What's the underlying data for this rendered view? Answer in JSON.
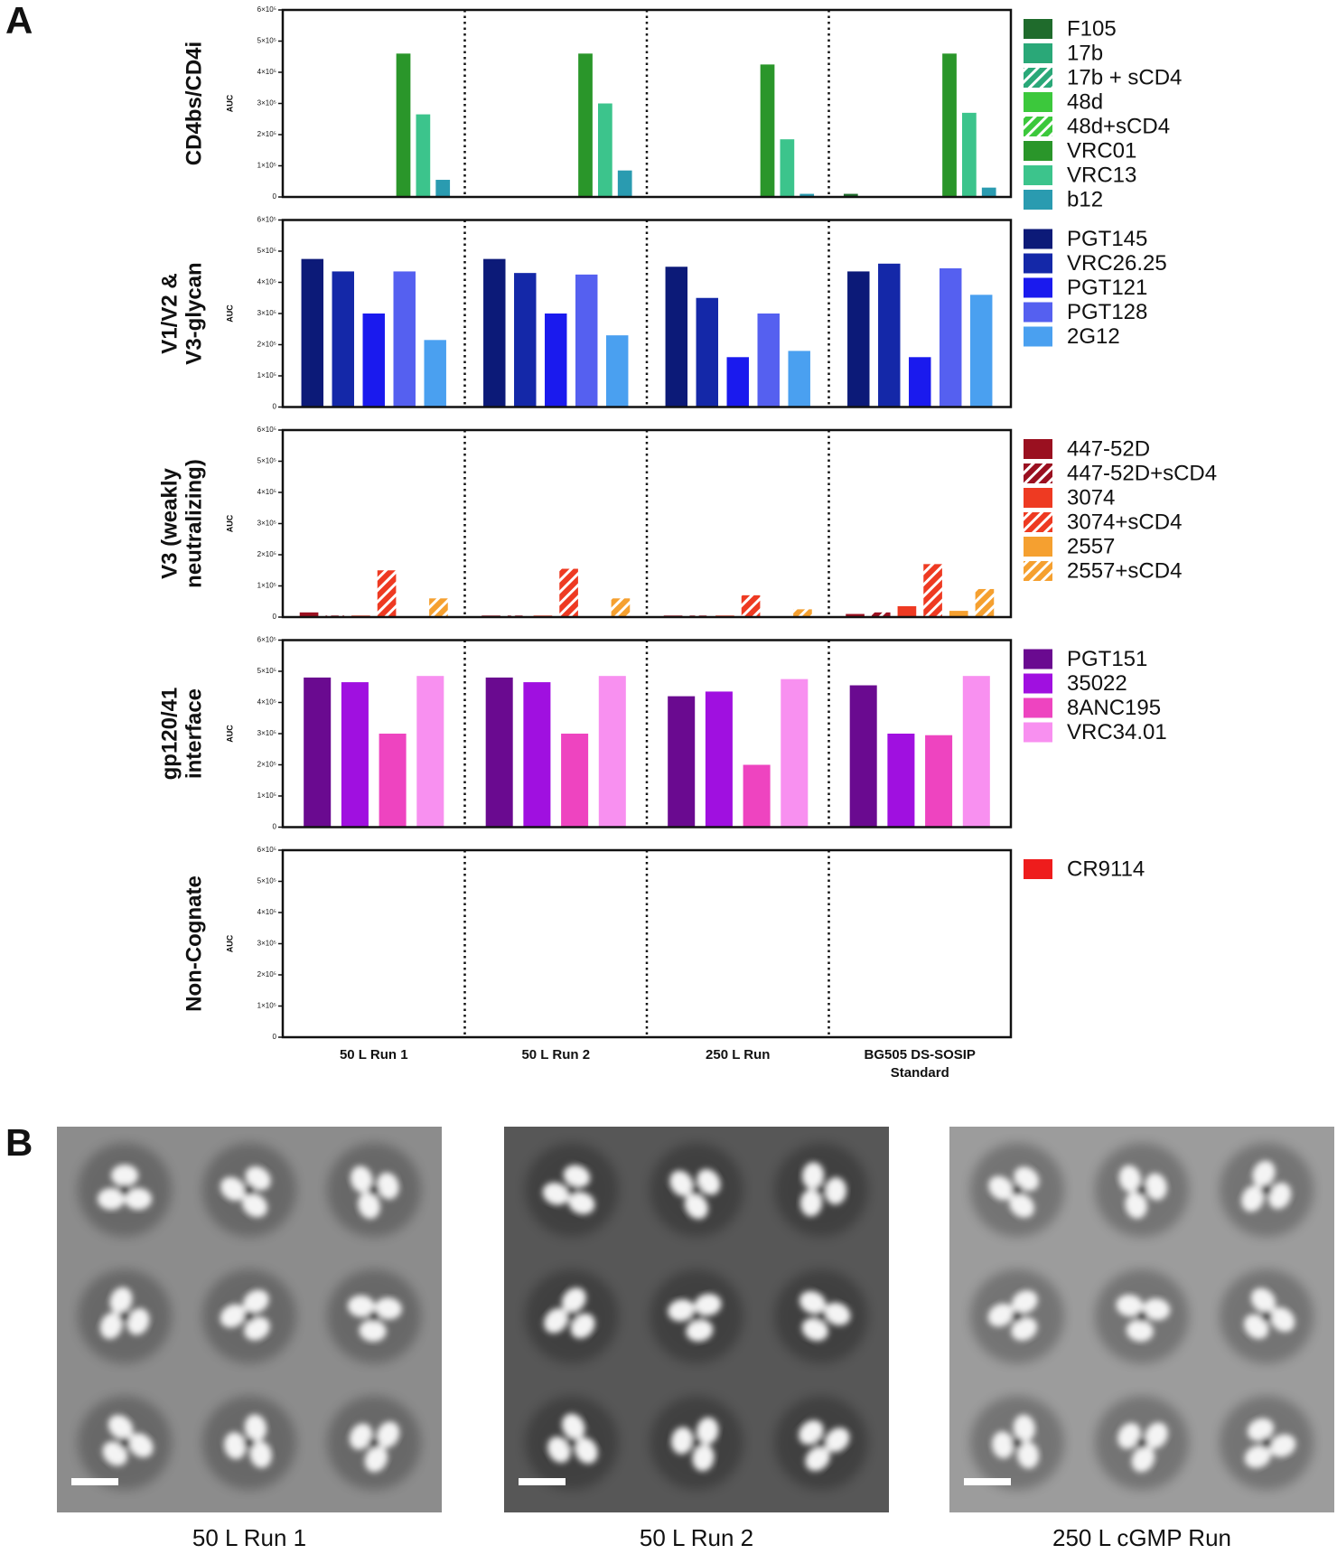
{
  "panel_labels": [
    "A",
    "B"
  ],
  "chart_data": [
    {
      "type": "bar",
      "title": [
        "CD4bs/CD4i"
      ],
      "y_label": "AUC",
      "ylim": [
        0,
        600000
      ],
      "yticks": [
        0,
        {
          "value": 100000,
          "label": "1×10⁵"
        },
        {
          "value": 200000,
          "label": "2×10⁵"
        },
        {
          "value": 300000,
          "label": "3×10⁵"
        },
        {
          "value": 400000,
          "label": "4×10⁵"
        },
        {
          "value": 500000,
          "label": "5×10⁵"
        },
        {
          "value": 600000,
          "label": "6×10⁵"
        }
      ],
      "series": [
        {
          "name": "F105",
          "color": "#1f6b2c",
          "hatched": false,
          "values": [
            0,
            0,
            0,
            10000
          ]
        },
        {
          "name": "17b",
          "color": "#2aa878",
          "hatched": false,
          "values": [
            0,
            0,
            0,
            0
          ]
        },
        {
          "name": "17b + sCD4",
          "color": "#2aa878",
          "hatched": true,
          "values": [
            0,
            0,
            0,
            0
          ]
        },
        {
          "name": "48d",
          "color": "#3cc83c",
          "hatched": false,
          "values": [
            0,
            0,
            0,
            0
          ]
        },
        {
          "name": "48d+sCD4",
          "color": "#3cc83c",
          "hatched": true,
          "values": [
            0,
            0,
            0,
            0
          ]
        },
        {
          "name": "VRC01",
          "color": "#2a962a",
          "hatched": false,
          "values": [
            460000,
            460000,
            425000,
            460000
          ]
        },
        {
          "name": "VRC13",
          "color": "#3cc48c",
          "hatched": false,
          "values": [
            265000,
            300000,
            185000,
            270000
          ]
        },
        {
          "name": "b12",
          "color": "#2a9bb0",
          "hatched": false,
          "values": [
            55000,
            85000,
            10000,
            30000
          ]
        }
      ]
    },
    {
      "type": "bar",
      "title": [
        "V1/V2 &",
        "V3-glycan"
      ],
      "y_label": "AUC",
      "ylim": [
        0,
        600000
      ],
      "yticks": [
        0,
        {
          "value": 100000,
          "label": "1×10⁵"
        },
        {
          "value": 200000,
          "label": "2×10⁵"
        },
        {
          "value": 300000,
          "label": "3×10⁵"
        },
        {
          "value": 400000,
          "label": "4×10⁵"
        },
        {
          "value": 500000,
          "label": "5×10⁵"
        },
        {
          "value": 600000,
          "label": "6×10⁵"
        }
      ],
      "series": [
        {
          "name": "PGT145",
          "color": "#0c1a78",
          "hatched": false,
          "values": [
            475000,
            475000,
            450000,
            435000
          ]
        },
        {
          "name": "VRC26.25",
          "color": "#1428a8",
          "hatched": false,
          "values": [
            435000,
            430000,
            350000,
            460000
          ]
        },
        {
          "name": "PGT121",
          "color": "#1a1aee",
          "hatched": false,
          "values": [
            300000,
            300000,
            160000,
            160000
          ]
        },
        {
          "name": "PGT128",
          "color": "#5560f0",
          "hatched": false,
          "values": [
            435000,
            425000,
            300000,
            445000
          ]
        },
        {
          "name": "2G12",
          "color": "#4aa0f0",
          "hatched": false,
          "values": [
            215000,
            230000,
            180000,
            360000
          ]
        }
      ]
    },
    {
      "type": "bar",
      "title": [
        "V3 (weakly",
        "neutralizing)"
      ],
      "y_label": "AUC",
      "ylim": [
        0,
        600000
      ],
      "yticks": [
        0,
        {
          "value": 100000,
          "label": "1×10⁵"
        },
        {
          "value": 200000,
          "label": "2×10⁵"
        },
        {
          "value": 300000,
          "label": "3×10⁵"
        },
        {
          "value": 400000,
          "label": "4×10⁵"
        },
        {
          "value": 500000,
          "label": "5×10⁵"
        },
        {
          "value": 600000,
          "label": "6×10⁵"
        }
      ],
      "series": [
        {
          "name": "447-52D",
          "color": "#9a1020",
          "hatched": false,
          "values": [
            15000,
            5000,
            5000,
            10000
          ]
        },
        {
          "name": "447-52D+sCD4",
          "color": "#9a1020",
          "hatched": true,
          "values": [
            5000,
            5000,
            5000,
            15000
          ]
        },
        {
          "name": "3074",
          "color": "#ee3a22",
          "hatched": false,
          "values": [
            5000,
            5000,
            5000,
            35000
          ]
        },
        {
          "name": "3074+sCD4",
          "color": "#ee3a22",
          "hatched": true,
          "values": [
            150000,
            155000,
            70000,
            170000
          ]
        },
        {
          "name": "2557",
          "color": "#f5a030",
          "hatched": false,
          "values": [
            0,
            0,
            0,
            20000
          ]
        },
        {
          "name": "2557+sCD4",
          "color": "#f5a030",
          "hatched": true,
          "values": [
            60000,
            60000,
            25000,
            90000
          ]
        }
      ]
    },
    {
      "type": "bar",
      "title": [
        "gp120/41",
        "interface"
      ],
      "y_label": "AUC",
      "ylim": [
        0,
        600000
      ],
      "yticks": [
        0,
        {
          "value": 100000,
          "label": "1×10⁵"
        },
        {
          "value": 200000,
          "label": "2×10⁵"
        },
        {
          "value": 300000,
          "label": "3×10⁵"
        },
        {
          "value": 400000,
          "label": "4×10⁵"
        },
        {
          "value": 500000,
          "label": "5×10⁵"
        },
        {
          "value": 600000,
          "label": "6×10⁵"
        }
      ],
      "series": [
        {
          "name": "PGT151",
          "color": "#6a0a90",
          "hatched": false,
          "values": [
            480000,
            480000,
            420000,
            455000
          ]
        },
        {
          "name": "35022",
          "color": "#a010e0",
          "hatched": false,
          "values": [
            465000,
            465000,
            435000,
            300000
          ]
        },
        {
          "name": "8ANC195",
          "color": "#ee44c0",
          "hatched": false,
          "values": [
            300000,
            300000,
            200000,
            295000
          ]
        },
        {
          "name": "VRC34.01",
          "color": "#f890f0",
          "hatched": false,
          "values": [
            485000,
            485000,
            475000,
            485000
          ]
        }
      ]
    },
    {
      "type": "bar",
      "title": [
        "Non-Cognate"
      ],
      "y_label": "AUC",
      "ylim": [
        0,
        600000
      ],
      "yticks": [
        0,
        {
          "value": 100000,
          "label": "1×10⁵"
        },
        {
          "value": 200000,
          "label": "2×10⁵"
        },
        {
          "value": 300000,
          "label": "3×10⁵"
        },
        {
          "value": 400000,
          "label": "4×10⁵"
        },
        {
          "value": 500000,
          "label": "5×10⁵"
        },
        {
          "value": 600000,
          "label": "6×10⁵"
        }
      ],
      "categories": [
        "50 L Run 1",
        "50 L Run 2",
        "250 L Run",
        "BG505 DS-SOSIP Standard"
      ],
      "series": [
        {
          "name": "CR9114",
          "color": "#ee1c1c",
          "hatched": false,
          "values": [
            0,
            0,
            0,
            0
          ]
        }
      ]
    }
  ],
  "panel_b": {
    "captions": [
      "50 L Run 1",
      "50 L Run 2",
      "250 L cGMP Run"
    ]
  }
}
